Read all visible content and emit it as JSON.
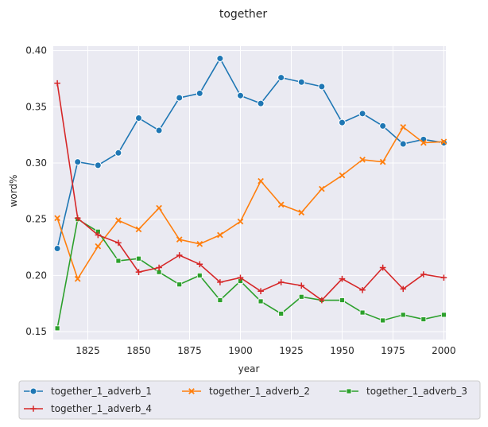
{
  "chart_data": {
    "type": "line",
    "title": "together",
    "xlabel": "year",
    "ylabel": "word%",
    "xlim": [
      1808,
      2001
    ],
    "ylim": [
      0.143,
      0.404
    ],
    "x_ticks": [
      "1825",
      "1850",
      "1875",
      "1900",
      "1925",
      "1950",
      "1975",
      "2000"
    ],
    "x_tick_values": [
      1825,
      1850,
      1875,
      1900,
      1925,
      1950,
      1975,
      2000
    ],
    "y_ticks": [
      "0.15",
      "0.20",
      "0.25",
      "0.30",
      "0.35",
      "0.40"
    ],
    "y_tick_values": [
      0.15,
      0.2,
      0.25,
      0.3,
      0.35,
      0.4
    ],
    "grid": true,
    "legend_position": "bottom",
    "x": [
      1810,
      1820,
      1830,
      1840,
      1850,
      1860,
      1870,
      1880,
      1890,
      1900,
      1910,
      1920,
      1930,
      1940,
      1950,
      1960,
      1970,
      1980,
      1990,
      2000
    ],
    "series": [
      {
        "name": "together_1_adverb_1",
        "color": "#1f77b4",
        "marker": "circle",
        "values": [
          0.224,
          0.301,
          0.298,
          0.309,
          0.34,
          0.329,
          0.358,
          0.362,
          0.393,
          0.36,
          0.353,
          0.376,
          0.372,
          0.368,
          0.336,
          0.344,
          0.333,
          0.317,
          0.321,
          0.318
        ]
      },
      {
        "name": "together_1_adverb_2",
        "color": "#ff7f0e",
        "marker": "x",
        "values": [
          0.251,
          0.197,
          0.226,
          0.249,
          0.241,
          0.26,
          0.232,
          0.228,
          0.236,
          0.248,
          0.284,
          0.263,
          0.256,
          0.277,
          0.289,
          0.303,
          0.301,
          0.332,
          0.318,
          0.319
        ]
      },
      {
        "name": "together_1_adverb_3",
        "color": "#2ca02c",
        "marker": "square",
        "values": [
          0.153,
          0.25,
          0.239,
          0.213,
          0.215,
          0.203,
          0.192,
          0.2,
          0.178,
          0.195,
          0.177,
          0.166,
          0.181,
          0.178,
          0.178,
          0.167,
          0.16,
          0.165,
          0.161,
          0.165
        ]
      },
      {
        "name": "together_1_adverb_4",
        "color": "#d62728",
        "marker": "plus",
        "values": [
          0.371,
          0.251,
          0.236,
          0.229,
          0.203,
          0.207,
          0.218,
          0.21,
          0.194,
          0.198,
          0.186,
          0.194,
          0.191,
          0.178,
          0.197,
          0.187,
          0.207,
          0.188,
          0.201,
          0.198
        ]
      }
    ]
  }
}
